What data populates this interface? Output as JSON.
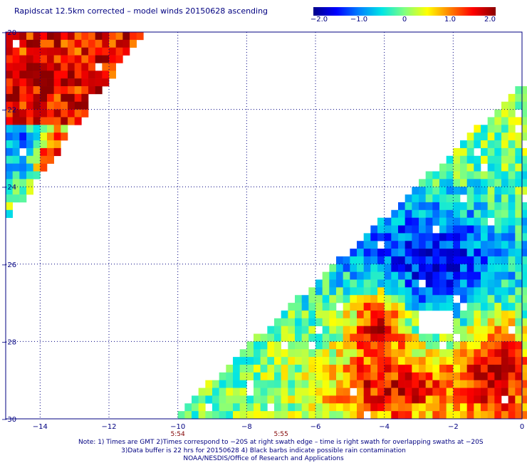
{
  "title": "Rapidscat 12.5km corrected – model winds 20150628 ascending",
  "colorbar": {
    "min": -2.0,
    "max": 2.0,
    "ticks": [
      {
        "value": -2.0,
        "label": "−2.0"
      },
      {
        "value": -1.0,
        "label": "−1.0"
      },
      {
        "value": 0,
        "label": "0"
      },
      {
        "value": 1.0,
        "label": "1.0"
      },
      {
        "value": 2.0,
        "label": "2.0"
      }
    ],
    "colors": [
      "#00008b",
      "#0000ff",
      "#0080ff",
      "#00e5e5",
      "#80ff80",
      "#ffff00",
      "#ff8000",
      "#ff0000",
      "#8b0000"
    ]
  },
  "notes": {
    "line1": "Note: 1) Times are GMT 2)Times correspond to −20S at right swath edge – time is right swath for overlapping swaths at −20S",
    "line2": "3)Data buffer is 22 hrs for 20150628 4) Black barbs indicate possible rain contamination",
    "line3": "NOAA/NESDIS/Office of Research and Applications"
  },
  "chart_data": {
    "type": "heatmap",
    "title": "Rapidscat 12.5km corrected – model winds 20150628 ascending",
    "xlim": [
      -15,
      0
    ],
    "ylim": [
      -30,
      -20
    ],
    "xticks": [
      {
        "value": -14,
        "label": "−14"
      },
      {
        "value": -12,
        "label": "−12"
      },
      {
        "value": -10,
        "label": "−10"
      },
      {
        "value": -8,
        "label": "−8"
      },
      {
        "value": -6,
        "label": "−6"
      },
      {
        "value": -4,
        "label": "−4"
      },
      {
        "value": -2,
        "label": "−2"
      },
      {
        "value": 0,
        "label": "0"
      }
    ],
    "yticks": [
      {
        "value": -20,
        "label": "−20"
      },
      {
        "value": -22,
        "label": "−22"
      },
      {
        "value": -24,
        "label": "−24"
      },
      {
        "value": -26,
        "label": "−26"
      },
      {
        "value": -28,
        "label": "−28"
      },
      {
        "value": -30,
        "label": "−30"
      }
    ],
    "time_labels": [
      {
        "x": -10,
        "label": "5:54"
      },
      {
        "x": -7,
        "label": "5:55"
      }
    ],
    "colorbar_range": [
      -2.0,
      2.0
    ],
    "grid": true,
    "swaths": [
      {
        "lon_left_edge": -15,
        "lat_top": -20,
        "diagonal_edge": [
          [
            -11,
            -20
          ],
          [
            -15,
            -25
          ]
        ]
      },
      {
        "diagonal_edge": [
          [
            -10.2,
            -30
          ],
          [
            0,
            -21.4
          ]
        ],
        "lon_right_edge": 0,
        "lat_bottom": -30
      }
    ],
    "features": [
      {
        "name": "left swath high",
        "lon": [
          -14.8,
          -13.4
        ],
        "lat": [
          -20.3,
          -22
        ],
        "value": 1.8
      },
      {
        "name": "left swath low",
        "lon": [
          -14.8,
          -14
        ],
        "lat": [
          -22.2,
          -23.5
        ],
        "value": -1.6
      },
      {
        "name": "left swath high core",
        "lon": [
          -14,
          -13.4
        ],
        "lat": [
          -22.8,
          -23.6
        ],
        "value": 2.0
      },
      {
        "name": "central low band",
        "lon": [
          -5.5,
          0
        ],
        "lat": [
          -24.5,
          -27.5
        ],
        "value": -1.5
      },
      {
        "name": "central high core",
        "lon": [
          -4.8,
          -3.5
        ],
        "lat": [
          -26.8,
          -28
        ],
        "value": 2.0
      },
      {
        "name": "southern high",
        "lon": [
          -5.5,
          -2
        ],
        "lat": [
          -28.5,
          -30
        ],
        "value": 1.6
      },
      {
        "name": "southeast high",
        "lon": [
          -1.5,
          0
        ],
        "lat": [
          -27.5,
          -30
        ],
        "value": 1.8
      },
      {
        "name": "rain gap",
        "lon": [
          -3,
          -2
        ],
        "lat": [
          -27.2,
          -27.7
        ],
        "value": null
      }
    ]
  }
}
